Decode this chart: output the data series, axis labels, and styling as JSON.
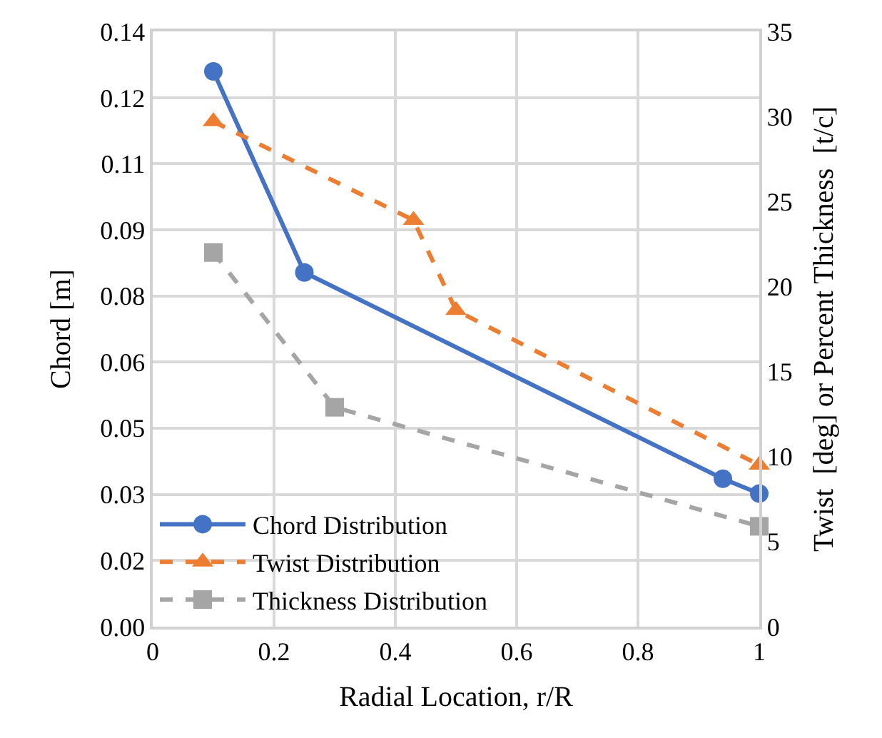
{
  "chart_data": {
    "type": "line",
    "xlabel": "Radial Location, r/R",
    "ylabel": "Chord [m]",
    "y2label": "Twist  [deg] or Percent Thickness  [t/c]",
    "xlim": [
      0,
      1
    ],
    "xticks": [
      0,
      0.2,
      0.4,
      0.6,
      0.8,
      1
    ],
    "ylim": [
      0,
      0.14
    ],
    "yticks": [
      {
        "value": 0,
        "label": "0.00"
      },
      {
        "value": 0.0156,
        "label": "0.02"
      },
      {
        "value": 0.0311,
        "label": "0.03"
      },
      {
        "value": 0.0467,
        "label": "0.05"
      },
      {
        "value": 0.0622,
        "label": "0.06"
      },
      {
        "value": 0.0778,
        "label": "0.08"
      },
      {
        "value": 0.0933,
        "label": "0.09"
      },
      {
        "value": 0.1089,
        "label": "0.11"
      },
      {
        "value": 0.1244,
        "label": "0.12"
      },
      {
        "value": 0.14,
        "label": "0.14"
      }
    ],
    "y2lim": [
      0,
      35
    ],
    "y2ticks": [
      0,
      5,
      10,
      15,
      20,
      25,
      30,
      35
    ],
    "grid": true,
    "legend": "bottom left",
    "series": [
      {
        "name": "Chord Distribution",
        "color": "#4472c4",
        "marker": "circle",
        "line_style": "solid",
        "x": [
          0.1,
          0.25,
          0.94,
          1.0
        ],
        "values": [
          0.1306,
          0.0833,
          0.0348,
          0.0313
        ]
      },
      {
        "name": "Twist Distribution",
        "color": "#ed7d31",
        "marker": "triangle",
        "line_style": "dashed",
        "axis": "y2",
        "x": [
          0.1,
          0.43,
          0.5,
          1.0
        ],
        "values": [
          29.7,
          23.9,
          18.6,
          9.5
        ]
      },
      {
        "name": "Thickness Distribution",
        "color": "#a5a5a5",
        "marker": "square",
        "line_style": "dashed",
        "axis": "y2",
        "x": [
          0.1,
          0.3,
          1.0
        ],
        "values": [
          22.0,
          12.9,
          5.9
        ]
      }
    ]
  }
}
